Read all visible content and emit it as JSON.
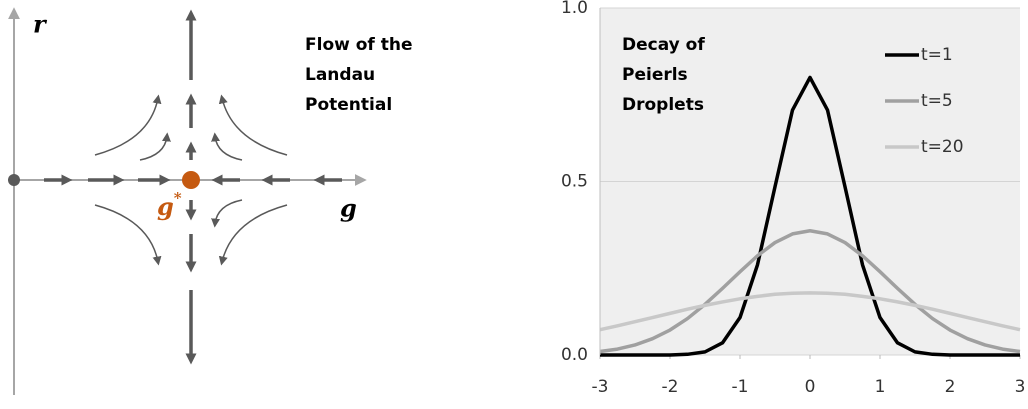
{
  "diagram": {
    "title": [
      "Flow of the",
      "Landau",
      "Potential"
    ],
    "vertical_axis_label": "r",
    "horizontal_axis_label": "g",
    "fixed_point_label": {
      "base": "g",
      "superscript": "*"
    }
  },
  "chart_data": {
    "type": "line",
    "title": [
      "Decay of",
      "Peierls",
      "Droplets"
    ],
    "x": [
      -3,
      -2.75,
      -2.5,
      -2.25,
      -2,
      -1.75,
      -1.5,
      -1.25,
      -1,
      -0.75,
      -0.5,
      -0.25,
      0,
      0.25,
      0.5,
      0.75,
      1,
      1.25,
      1.5,
      1.75,
      2,
      2.25,
      2.5,
      2.75,
      3
    ],
    "series": [
      {
        "name": "t=1",
        "color": "#000000",
        "values": [
          0,
          0,
          0,
          0,
          0,
          0.002,
          0.009,
          0.035,
          0.108,
          0.26,
          0.485,
          0.706,
          0.8,
          0.706,
          0.485,
          0.26,
          0.108,
          0.035,
          0.009,
          0.002,
          0,
          0,
          0,
          0,
          0
        ]
      },
      {
        "name": "t=5",
        "color": "#a0a0a0",
        "values": [
          0.01,
          0.017,
          0.029,
          0.047,
          0.072,
          0.105,
          0.146,
          0.192,
          0.24,
          0.286,
          0.324,
          0.349,
          0.358,
          0.349,
          0.324,
          0.286,
          0.24,
          0.192,
          0.146,
          0.105,
          0.072,
          0.047,
          0.029,
          0.017,
          0.01
        ]
      },
      {
        "name": "t=20",
        "color": "#c8c8c8",
        "values": [
          0.073,
          0.084,
          0.096,
          0.108,
          0.12,
          0.132,
          0.143,
          0.153,
          0.162,
          0.169,
          0.175,
          0.178,
          0.179,
          0.178,
          0.175,
          0.169,
          0.162,
          0.153,
          0.143,
          0.132,
          0.12,
          0.108,
          0.096,
          0.084,
          0.073
        ]
      }
    ],
    "xlim": [
      -3,
      3
    ],
    "xticks": [
      -3,
      -2,
      -1,
      0,
      1,
      2,
      3
    ],
    "ylim": [
      0,
      1
    ],
    "yticks": [
      {
        "value": 0,
        "label": "0.0"
      },
      0.5,
      {
        "value": 1,
        "label": "1.0"
      }
    ],
    "grid": true,
    "legend": "top-right"
  }
}
